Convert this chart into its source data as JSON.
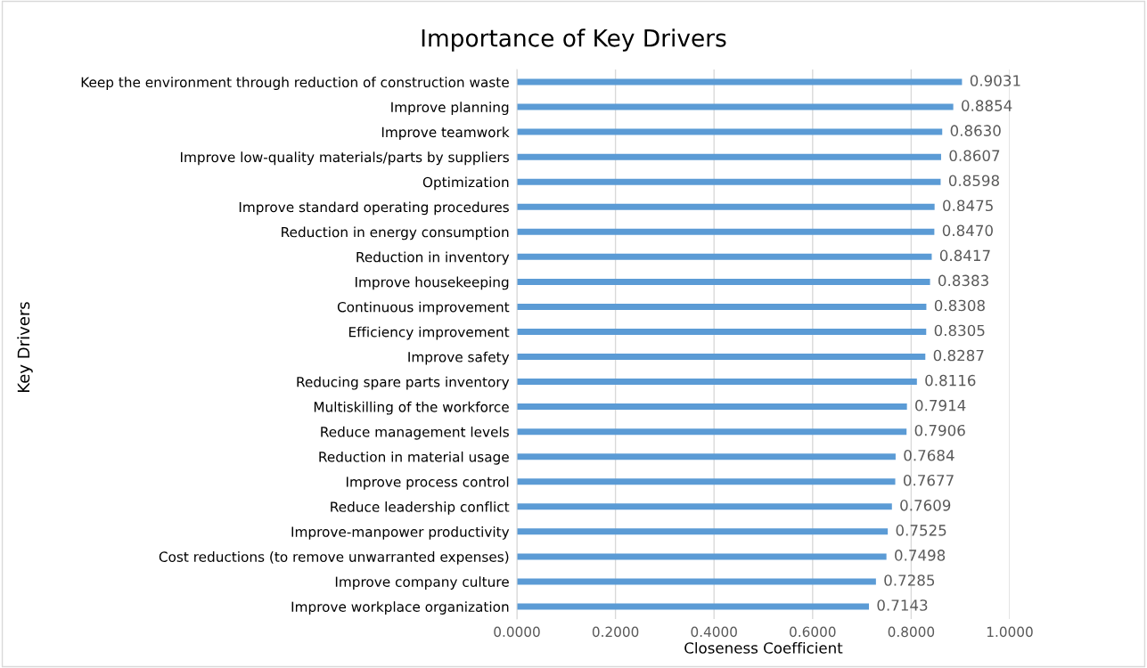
{
  "chart_data": {
    "type": "bar",
    "orientation": "horizontal",
    "title": "Importance of Key Drivers",
    "xlabel": "Closeness Coefficient",
    "ylabel": "Key Drivers",
    "categories": [
      "Keep the environment through reduction of construction waste",
      "Improve planning",
      "Improve teamwork",
      "Improve low-quality materials/parts by suppliers",
      "Optimization",
      "Improve standard operating procedures",
      "Reduction in energy consumption",
      "Reduction in inventory",
      "Improve housekeeping",
      "Continuous improvement",
      "Efficiency improvement",
      "Improve safety",
      "Reducing spare parts inventory",
      "Multiskilling of the workforce",
      "Reduce management levels",
      "Reduction in material usage",
      "Improve process control",
      "Reduce leadership conflict",
      "Improve-manpower productivity",
      "Cost reductions (to remove unwarranted expenses)",
      "Improve company culture",
      "Improve workplace organization"
    ],
    "values": [
      0.9031,
      0.8854,
      0.863,
      0.8607,
      0.8598,
      0.8475,
      0.847,
      0.8417,
      0.8383,
      0.8308,
      0.8305,
      0.8287,
      0.8116,
      0.7914,
      0.7906,
      0.7684,
      0.7677,
      0.7609,
      0.7525,
      0.7498,
      0.7285,
      0.7143
    ],
    "value_labels": [
      "0.9031",
      "0.8854",
      "0.8630",
      "0.8607",
      "0.8598",
      "0.8475",
      "0.8470",
      "0.8417",
      "0.8383",
      "0.8308",
      "0.8305",
      "0.8287",
      "0.8116",
      "0.7914",
      "0.7906",
      "0.7684",
      "0.7677",
      "0.7609",
      "0.7525",
      "0.7498",
      "0.7285",
      "0.7143"
    ],
    "color": "#5b9bd5",
    "xlim": [
      0,
      1
    ],
    "xticks": [
      {
        "value": 0,
        "label": "0.0000"
      },
      {
        "value": 0.2,
        "label": "0.2000"
      },
      {
        "value": 0.4,
        "label": "0.4000"
      },
      {
        "value": 0.6,
        "label": "0.6000"
      },
      {
        "value": 0.8,
        "label": "0.8000"
      },
      {
        "value": 1,
        "label": "1.0000"
      }
    ],
    "grid": "x"
  }
}
